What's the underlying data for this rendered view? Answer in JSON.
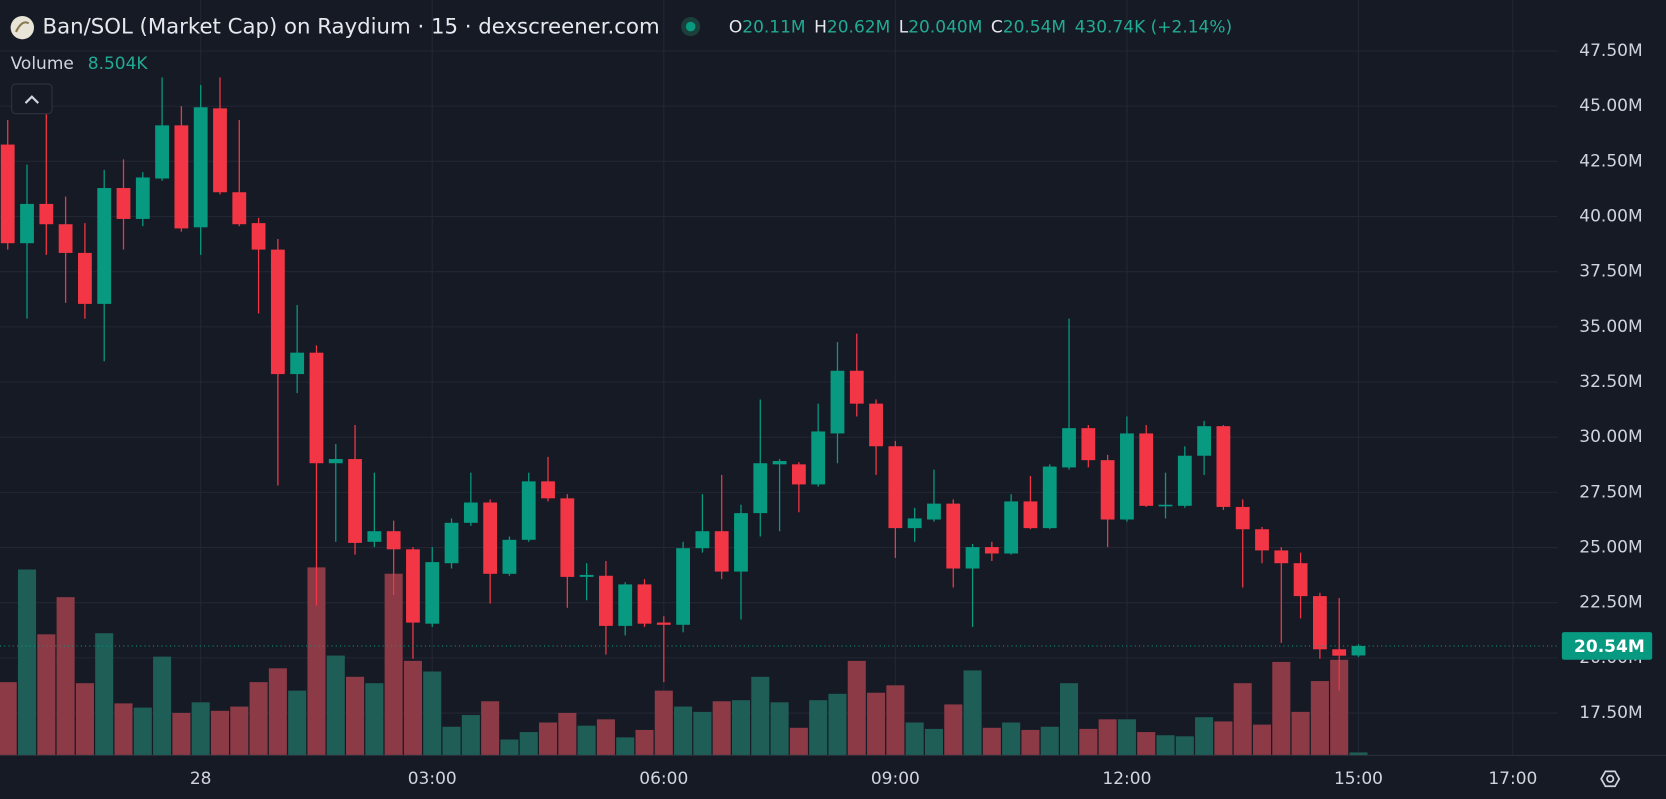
{
  "chart_data": {
    "type": "candlestick",
    "title": "Ban/SOL (Market Cap) on Raydium · 15 · dexscreener.com",
    "ohlc_readout": [
      {
        "label": "O",
        "value": "20.11M"
      },
      {
        "label": "H",
        "value": "20.62M"
      },
      {
        "label": "L",
        "value": "20.040M"
      },
      {
        "label": "C",
        "value": "20.54M"
      }
    ],
    "change": "430.74K (+2.14%)",
    "volume_name": "Volume",
    "volume_readout": "8.504K",
    "x": [
      -2.5,
      -2.25,
      -2,
      -1.75,
      -1.5,
      -1.25,
      -1,
      -0.75,
      -0.5,
      -0.25,
      0,
      0.25,
      0.5,
      0.75,
      1,
      1.25,
      1.5,
      1.75,
      2,
      2.25,
      2.5,
      2.75,
      3,
      3.25,
      3.5,
      3.75,
      4,
      4.25,
      4.5,
      4.75,
      5,
      5.25,
      5.5,
      5.75,
      6,
      6.25,
      6.5,
      6.75,
      7,
      7.25,
      7.5,
      7.75,
      8,
      8.25,
      8.5,
      8.75,
      9,
      9.25,
      9.5,
      9.75,
      10,
      10.25,
      10.5,
      10.75,
      11,
      11.25,
      11.5,
      11.75,
      12,
      12.25,
      12.5,
      12.75,
      13,
      13.25,
      13.5,
      13.75,
      14,
      14.25,
      14.5,
      14.75,
      15
    ],
    "ohlc": [
      [
        43.26,
        44.37,
        38.5,
        38.79
      ],
      [
        38.79,
        42.35,
        35.37,
        40.57
      ],
      [
        40.57,
        44.75,
        38.26,
        39.65
      ],
      [
        39.65,
        40.9,
        36.09,
        38.35
      ],
      [
        38.35,
        39.7,
        35.37,
        36.04
      ],
      [
        36.04,
        42.11,
        33.44,
        41.29
      ],
      [
        41.29,
        42.59,
        38.5,
        39.89
      ],
      [
        39.89,
        42.01,
        39.56,
        41.77
      ],
      [
        41.72,
        46.3,
        41.62,
        44.13
      ],
      [
        44.13,
        45.0,
        39.31,
        39.46
      ],
      [
        39.51,
        45.96,
        38.26,
        44.95
      ],
      [
        44.9,
        46.3,
        41.0,
        41.1
      ],
      [
        41.1,
        44.37,
        39.56,
        39.65
      ],
      [
        39.7,
        39.94,
        35.61,
        38.5
      ],
      [
        38.5,
        38.98,
        27.81,
        32.86
      ],
      [
        32.86,
        35.99,
        32.0,
        33.83
      ],
      [
        33.83,
        34.16,
        22.37,
        28.82
      ],
      [
        28.82,
        29.69,
        25.26,
        29.01
      ],
      [
        29.01,
        30.55,
        24.68,
        25.21
      ],
      [
        25.26,
        28.39,
        25.02,
        25.74
      ],
      [
        25.74,
        26.22,
        22.85,
        24.92
      ],
      [
        24.92,
        25.02,
        19.96,
        21.6
      ],
      [
        21.55,
        25.02,
        21.4,
        24.34
      ],
      [
        24.29,
        26.32,
        24.05,
        26.12
      ],
      [
        26.12,
        28.39,
        25.98,
        27.04
      ],
      [
        27.04,
        27.18,
        22.46,
        23.81
      ],
      [
        23.81,
        25.5,
        23.72,
        25.35
      ],
      [
        25.35,
        28.39,
        25.26,
        28.0
      ],
      [
        28.0,
        29.11,
        27.09,
        27.23
      ],
      [
        27.23,
        27.42,
        22.27,
        23.67
      ],
      [
        23.67,
        24.29,
        22.61,
        23.76
      ],
      [
        23.72,
        24.39,
        20.15,
        21.45
      ],
      [
        21.45,
        23.43,
        21.02,
        23.33
      ],
      [
        23.33,
        23.57,
        21.4,
        21.55
      ],
      [
        21.6,
        21.89,
        18.9,
        21.5
      ],
      [
        21.5,
        25.26,
        21.16,
        24.97
      ],
      [
        24.97,
        27.42,
        24.77,
        25.74
      ],
      [
        25.74,
        28.29,
        23.57,
        23.91
      ],
      [
        23.91,
        26.94,
        21.74,
        26.56
      ],
      [
        26.56,
        31.71,
        25.5,
        28.82
      ],
      [
        28.77,
        29.01,
        25.74,
        28.92
      ],
      [
        28.77,
        28.87,
        26.6,
        27.86
      ],
      [
        27.86,
        31.52,
        27.76,
        30.26
      ],
      [
        30.17,
        34.31,
        28.82,
        33.01
      ],
      [
        33.01,
        34.69,
        30.94,
        31.52
      ],
      [
        31.52,
        31.71,
        28.29,
        29.59
      ],
      [
        29.59,
        29.83,
        24.53,
        25.88
      ],
      [
        25.88,
        26.8,
        25.26,
        26.32
      ],
      [
        26.27,
        28.53,
        26.17,
        26.99
      ],
      [
        26.99,
        27.18,
        23.19,
        24.05
      ],
      [
        24.05,
        25.16,
        21.4,
        25.02
      ],
      [
        25.02,
        25.26,
        24.39,
        24.73
      ],
      [
        24.73,
        27.42,
        24.68,
        27.09
      ],
      [
        27.09,
        28.24,
        25.83,
        25.88
      ],
      [
        25.88,
        28.77,
        25.83,
        28.67
      ],
      [
        28.63,
        35.37,
        28.53,
        30.41
      ],
      [
        30.41,
        30.55,
        28.63,
        28.96
      ],
      [
        28.96,
        29.2,
        25.02,
        26.27
      ],
      [
        26.27,
        30.94,
        26.17,
        30.17
      ],
      [
        30.17,
        30.55,
        26.84,
        26.89
      ],
      [
        26.89,
        28.39,
        26.32,
        26.94
      ],
      [
        26.89,
        29.59,
        26.8,
        29.16
      ],
      [
        29.16,
        30.74,
        28.29,
        30.5
      ],
      [
        30.5,
        30.55,
        26.7,
        26.84
      ],
      [
        26.84,
        27.18,
        23.19,
        25.83
      ],
      [
        25.83,
        25.93,
        24.29,
        24.87
      ],
      [
        24.87,
        25.02,
        20.68,
        24.29
      ],
      [
        24.29,
        24.77,
        21.79,
        22.8
      ],
      [
        22.8,
        22.95,
        19.96,
        20.39
      ],
      [
        20.39,
        22.71,
        18.52,
        20.1
      ],
      [
        20.11,
        20.62,
        20.04,
        20.54
      ]
    ],
    "volume": [
      207,
      525,
      342,
      447,
      204,
      345,
      147,
      135,
      279,
      120,
      150,
      126,
      138,
      207,
      246,
      183,
      531,
      282,
      222,
      204,
      513,
      267,
      237,
      81,
      114,
      153,
      45,
      66,
      93,
      120,
      84,
      102,
      51,
      72,
      183,
      138,
      123,
      153,
      156,
      222,
      150,
      78,
      156,
      174,
      267,
      177,
      198,
      93,
      75,
      144,
      240,
      78,
      93,
      72,
      81,
      204,
      75,
      102,
      102,
      66,
      57,
      54,
      108,
      96,
      204,
      87,
      264,
      123,
      210,
      270,
      8.504
    ],
    "volume_lim": [
      0,
      2133
    ],
    "up_color": "#089981",
    "down_color": "#f23645",
    "volume_up_color": "#1f5e57",
    "volume_down_color": "#8b3a46",
    "xlim": [
      -2.6,
      17.58
    ],
    "xticks": [
      {
        "value": 0,
        "label": "28"
      },
      {
        "value": 3,
        "label": "03:00"
      },
      {
        "value": 6,
        "label": "06:00"
      },
      {
        "value": 9,
        "label": "09:00"
      },
      {
        "value": 12,
        "label": "12:00"
      },
      {
        "value": 15,
        "label": "15:00"
      },
      {
        "value": 17,
        "label": "17:00"
      }
    ],
    "ylim": [
      15.58,
      49.81
    ],
    "yticks": [
      {
        "value": 17.5,
        "label": "17.50M"
      },
      {
        "value": 20,
        "label": "20.00M"
      },
      {
        "value": 22.5,
        "label": "22.50M"
      },
      {
        "value": 25,
        "label": "25.00M"
      },
      {
        "value": 27.5,
        "label": "27.50M"
      },
      {
        "value": 30,
        "label": "30.00M"
      },
      {
        "value": 32.5,
        "label": "32.50M"
      },
      {
        "value": 35,
        "label": "35.00M"
      },
      {
        "value": 37.5,
        "label": "37.50M"
      },
      {
        "value": 40,
        "label": "40.00M"
      },
      {
        "value": 42.5,
        "label": "42.50M"
      },
      {
        "value": 45,
        "label": "45.00M"
      },
      {
        "value": 47.5,
        "label": "47.50M"
      }
    ],
    "last_price": {
      "value": 20.54,
      "label": "20.54M"
    },
    "grid": true
  }
}
